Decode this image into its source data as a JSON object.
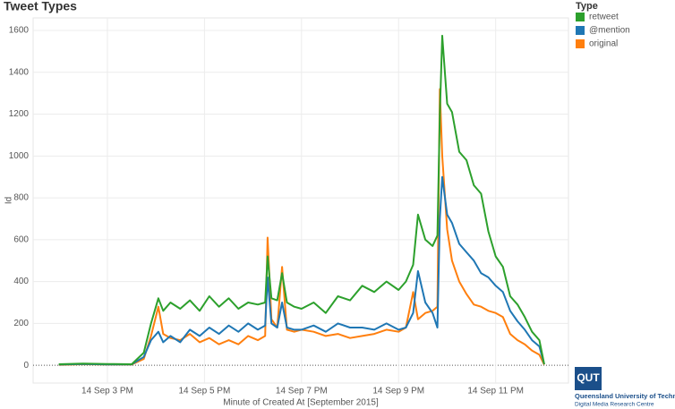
{
  "chart_data": {
    "type": "line",
    "title": "Tweet Types",
    "x_label": "Minute of Created At [September 2015]",
    "y_label": "Id",
    "legend_title": "Type",
    "legend_position": "right",
    "grid": true,
    "x": [
      14,
      14.5,
      15,
      15.5,
      15.75,
      15.9,
      16.05,
      16.15,
      16.3,
      16.5,
      16.7,
      16.9,
      17.1,
      17.3,
      17.5,
      17.7,
      17.9,
      18.1,
      18.25,
      18.3,
      18.38,
      18.5,
      18.6,
      18.7,
      18.85,
      19.0,
      19.25,
      19.5,
      19.75,
      20.0,
      20.25,
      20.5,
      20.75,
      21.0,
      21.15,
      21.3,
      21.4,
      21.55,
      21.7,
      21.8,
      21.85,
      21.9,
      22.0,
      22.1,
      22.25,
      22.4,
      22.55,
      22.7,
      22.85,
      23.0,
      23.15,
      23.3,
      23.45,
      23.6,
      23.75,
      23.9,
      24.0
    ],
    "series": [
      {
        "name": "retweet",
        "color": "#2ca02c",
        "values": [
          5,
          8,
          6,
          5,
          60,
          200,
          320,
          260,
          300,
          270,
          310,
          260,
          330,
          280,
          320,
          270,
          300,
          290,
          300,
          520,
          320,
          310,
          440,
          300,
          280,
          270,
          300,
          250,
          330,
          310,
          380,
          350,
          400,
          360,
          400,
          480,
          720,
          600,
          570,
          620,
          1200,
          1575,
          1250,
          1210,
          1020,
          980,
          860,
          820,
          640,
          520,
          470,
          330,
          290,
          230,
          160,
          120,
          5
        ]
      },
      {
        "name": "@mention",
        "color": "#1f77b4",
        "values": [
          3,
          6,
          4,
          4,
          40,
          120,
          160,
          110,
          140,
          110,
          170,
          140,
          180,
          150,
          190,
          160,
          200,
          170,
          190,
          420,
          200,
          180,
          300,
          180,
          170,
          170,
          190,
          160,
          200,
          180,
          180,
          170,
          200,
          170,
          180,
          250,
          450,
          300,
          250,
          180,
          700,
          900,
          720,
          680,
          580,
          540,
          500,
          440,
          420,
          380,
          350,
          260,
          210,
          170,
          120,
          90,
          5
        ]
      },
      {
        "name": "original",
        "color": "#ff7f0e",
        "values": [
          2,
          5,
          3,
          3,
          30,
          140,
          280,
          150,
          130,
          120,
          150,
          110,
          130,
          100,
          120,
          100,
          140,
          120,
          140,
          610,
          220,
          180,
          470,
          170,
          160,
          170,
          160,
          140,
          150,
          130,
          140,
          150,
          170,
          160,
          180,
          350,
          220,
          250,
          260,
          280,
          1320,
          1000,
          650,
          500,
          400,
          340,
          290,
          280,
          260,
          250,
          230,
          150,
          120,
          100,
          70,
          50,
          3
        ]
      }
    ],
    "xlim": [
      13.47,
      24.5
    ],
    "xticks": [
      {
        "value": 15,
        "label": "14 Sep 3 PM"
      },
      {
        "value": 17,
        "label": "14 Sep 5 PM"
      },
      {
        "value": 19,
        "label": "14 Sep 7 PM"
      },
      {
        "value": 21,
        "label": "14 Sep 9 PM"
      },
      {
        "value": 23,
        "label": "14 Sep 11 PM"
      }
    ],
    "ylim": [
      -85,
      1660
    ],
    "yticks": [
      0,
      200,
      400,
      600,
      800,
      1000,
      1200,
      1400,
      1600
    ]
  },
  "logo": {
    "mark": "QUT",
    "name": "Queensland University of Technology",
    "unit": "Digital Media Research Centre"
  }
}
